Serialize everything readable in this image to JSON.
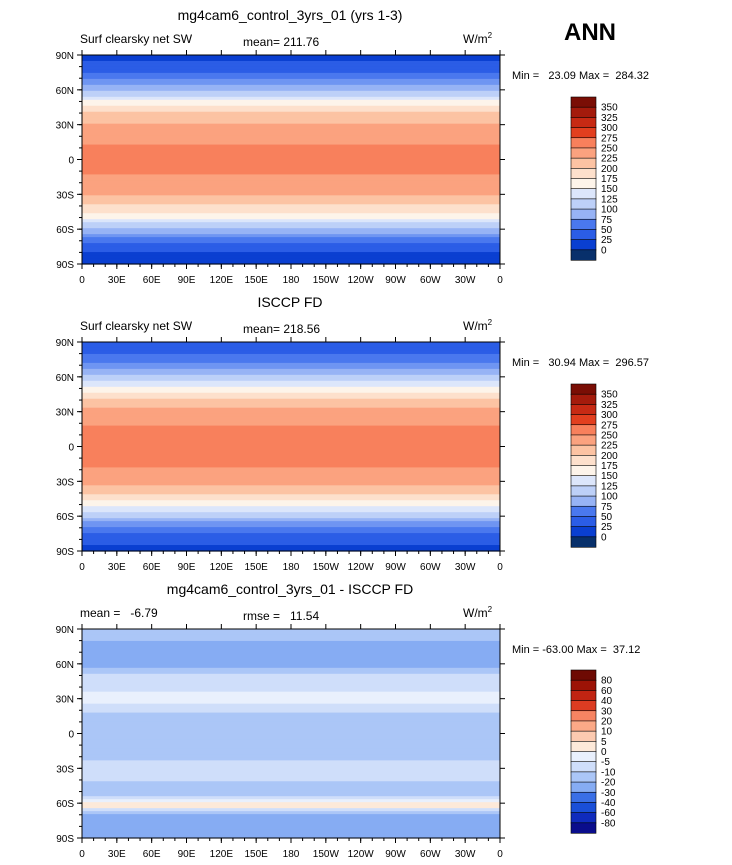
{
  "header": {
    "season": "ANN"
  },
  "colors": {
    "abs_palette": [
      "#08306b",
      "#0a3fd1",
      "#2b5de6",
      "#4a78ee",
      "#6f95f2",
      "#97b3f5",
      "#bdd0f8",
      "#dce6fb",
      "#fdf4ea",
      "#fde0cc",
      "#fcc3a3",
      "#fba27f",
      "#f8805c",
      "#f15f3a",
      "#e23f1f",
      "#c72a14",
      "#a41b0c",
      "#7a0e05"
    ],
    "diff_palette": [
      "#0a0d8c",
      "#0f2bbd",
      "#1a4fd8",
      "#3a6fe6",
      "#6090ee",
      "#86acf3",
      "#abc6f7",
      "#cfdefa",
      "#e9f0fd",
      "#fde9d9",
      "#fccab0",
      "#fba987",
      "#f78462",
      "#ef6040",
      "#dc3c22",
      "#c12412",
      "#9c1306",
      "#6e0a03"
    ]
  },
  "chart_data": [
    {
      "type": "heatmap",
      "title": "mg4cam6_control_3yrs_01 (yrs 1-3)",
      "left_label": "Surf clearsky net SW",
      "center_label": "mean= 211.76",
      "units": "W/m",
      "units_exp": "2",
      "minmax_text": "Min =   23.09 Max =  284.32",
      "y_ticks": [
        "90N",
        "60N",
        "30N",
        "0",
        "30S",
        "60S",
        "90S"
      ],
      "x_ticks": [
        "0",
        "30E",
        "60E",
        "90E",
        "120E",
        "150E",
        "180",
        "150W",
        "120W",
        "90W",
        "60W",
        "30W",
        "0"
      ],
      "colorbar_labels": [
        "350",
        "325",
        "300",
        "275",
        "250",
        "225",
        "200",
        "175",
        "150",
        "125",
        "100",
        "75",
        "50",
        "25",
        "0"
      ],
      "lat_profile": [
        [
          90,
          15
        ],
        [
          80,
          35
        ],
        [
          70,
          70
        ],
        [
          62,
          110
        ],
        [
          55,
          150
        ],
        [
          48,
          190
        ],
        [
          40,
          225
        ],
        [
          30,
          252
        ],
        [
          20,
          268
        ],
        [
          10,
          278
        ],
        [
          0,
          280
        ],
        [
          -10,
          278
        ],
        [
          -20,
          268
        ],
        [
          -30,
          250
        ],
        [
          -40,
          222
        ],
        [
          -48,
          190
        ],
        [
          -55,
          150
        ],
        [
          -62,
          110
        ],
        [
          -70,
          60
        ],
        [
          -80,
          25
        ],
        [
          -90,
          10
        ]
      ]
    },
    {
      "type": "heatmap",
      "title": "ISCCP FD",
      "left_label": "Surf clearsky net SW",
      "center_label": "mean= 218.56",
      "units": "W/m",
      "units_exp": "2",
      "minmax_text": "Min =   30.94 Max =  296.57",
      "y_ticks": [
        "90N",
        "60N",
        "30N",
        "0",
        "30S",
        "60S",
        "90S"
      ],
      "x_ticks": [
        "0",
        "30E",
        "60E",
        "90E",
        "120E",
        "150E",
        "180",
        "150W",
        "120W",
        "90W",
        "60W",
        "30W",
        "0"
      ],
      "colorbar_labels": [
        "350",
        "325",
        "300",
        "275",
        "250",
        "225",
        "200",
        "175",
        "150",
        "125",
        "100",
        "75",
        "50",
        "25",
        "0"
      ],
      "lat_profile": [
        [
          90,
          25
        ],
        [
          80,
          45
        ],
        [
          70,
          80
        ],
        [
          62,
          120
        ],
        [
          55,
          160
        ],
        [
          48,
          198
        ],
        [
          40,
          232
        ],
        [
          30,
          258
        ],
        [
          20,
          274
        ],
        [
          10,
          284
        ],
        [
          0,
          286
        ],
        [
          -10,
          284
        ],
        [
          -20,
          274
        ],
        [
          -30,
          256
        ],
        [
          -40,
          228
        ],
        [
          -48,
          196
        ],
        [
          -55,
          158
        ],
        [
          -62,
          118
        ],
        [
          -70,
          70
        ],
        [
          -80,
          32
        ],
        [
          -90,
          20
        ]
      ]
    },
    {
      "type": "heatmap",
      "title": "mg4cam6_control_3yrs_01 - ISCCP FD",
      "left_label": "mean =   -6.79",
      "center_label": "rmse =   11.54",
      "units": "W/m",
      "units_exp": "2",
      "minmax_text": "Min = -63.00 Max =  37.12",
      "y_ticks": [
        "90N",
        "60N",
        "30N",
        "0",
        "30S",
        "60S",
        "90S"
      ],
      "x_ticks": [
        "0",
        "30E",
        "60E",
        "90E",
        "120E",
        "150E",
        "180",
        "150W",
        "120W",
        "90W",
        "60W",
        "30W",
        "0"
      ],
      "colorbar_labels": [
        "80",
        "60",
        "40",
        "30",
        "20",
        "10",
        "5",
        "0",
        "-5",
        "-10",
        "-20",
        "-30",
        "-40",
        "-60",
        "-80"
      ],
      "lat_profile": [
        [
          90,
          -6
        ],
        [
          80,
          -10
        ],
        [
          70,
          -16
        ],
        [
          62,
          -20
        ],
        [
          55,
          -8
        ],
        [
          48,
          -3
        ],
        [
          40,
          -2
        ],
        [
          30,
          4
        ],
        [
          20,
          -4
        ],
        [
          10,
          -8
        ],
        [
          0,
          -9
        ],
        [
          -10,
          -8
        ],
        [
          -20,
          -6
        ],
        [
          -30,
          -3
        ],
        [
          -40,
          -5
        ],
        [
          -48,
          -9
        ],
        [
          -55,
          -4
        ],
        [
          -62,
          8
        ],
        [
          -70,
          -10
        ],
        [
          -80,
          -12
        ],
        [
          -90,
          -12
        ]
      ]
    }
  ]
}
